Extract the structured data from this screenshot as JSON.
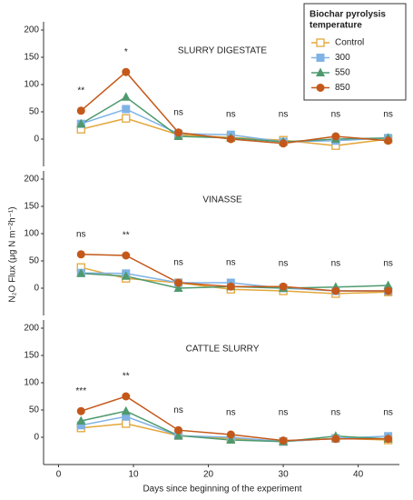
{
  "legend": {
    "title": [
      "Biochar pyrolysis",
      "temperature"
    ],
    "items": [
      {
        "name": "Control",
        "color": "#e3a73a",
        "marker": "square-open"
      },
      {
        "name": "300",
        "color": "#7fb2e5",
        "marker": "square"
      },
      {
        "name": "550",
        "color": "#4e9a6e",
        "marker": "triangle"
      },
      {
        "name": "850",
        "color": "#c4581a",
        "marker": "circle"
      }
    ]
  },
  "x_axis": {
    "label": "Days since beginning of the experiment",
    "xlim": [
      -2,
      45.5
    ],
    "xticks": [
      0,
      10,
      20,
      30,
      40
    ]
  },
  "y_label": "N₂O Flux (μg N m⁻²h⁻¹)",
  "chart_data": [
    {
      "type": "line",
      "title": "SLURRY DIGESTATE",
      "x": [
        3,
        9,
        16,
        23,
        30,
        37,
        44
      ],
      "series": [
        {
          "values": [
            18,
            38,
            8,
            3,
            -2,
            -12,
            0
          ]
        },
        {
          "values": [
            28,
            55,
            10,
            8,
            -5,
            -3,
            2
          ]
        },
        {
          "values": [
            28,
            77,
            5,
            2,
            -5,
            0,
            2
          ]
        },
        {
          "values": [
            52,
            123,
            12,
            0,
            -8,
            5,
            -3
          ]
        }
      ],
      "significance": [
        "**",
        "*",
        "ns",
        "ns",
        "ns",
        "ns",
        "ns"
      ],
      "ylim": [
        -50,
        215
      ],
      "yticks": [
        0,
        50,
        100,
        150,
        200
      ]
    },
    {
      "type": "line",
      "title": "VINASSE",
      "x": [
        3,
        9,
        16,
        23,
        30,
        37,
        44
      ],
      "series": [
        {
          "values": [
            38,
            18,
            10,
            -2,
            -5,
            -10,
            -7
          ]
        },
        {
          "values": [
            28,
            27,
            10,
            10,
            0,
            -5,
            -5
          ]
        },
        {
          "values": [
            27,
            22,
            0,
            3,
            0,
            2,
            5
          ]
        },
        {
          "values": [
            62,
            60,
            10,
            3,
            3,
            -5,
            -5
          ]
        }
      ],
      "significance": [
        "ns",
        "**",
        "ns",
        "ns",
        "ns",
        "ns",
        "ns"
      ],
      "ylim": [
        -50,
        215
      ],
      "yticks": [
        0,
        50,
        100,
        150,
        200
      ]
    },
    {
      "type": "line",
      "title": "CATTLE SLURRY",
      "x": [
        3,
        9,
        16,
        23,
        30,
        37,
        44
      ],
      "series": [
        {
          "values": [
            17,
            25,
            3,
            -2,
            -8,
            -2,
            -5
          ]
        },
        {
          "values": [
            22,
            38,
            3,
            0,
            -8,
            -2,
            2
          ]
        },
        {
          "values": [
            30,
            48,
            3,
            -5,
            -8,
            2,
            -3
          ]
        },
        {
          "values": [
            48,
            75,
            13,
            5,
            -6,
            -3,
            -3
          ]
        }
      ],
      "significance": [
        "***",
        "**",
        "ns",
        "ns",
        "ns",
        "ns",
        "ns"
      ],
      "ylim": [
        -50,
        215
      ],
      "yticks": [
        0,
        50,
        100,
        150,
        200
      ]
    }
  ]
}
